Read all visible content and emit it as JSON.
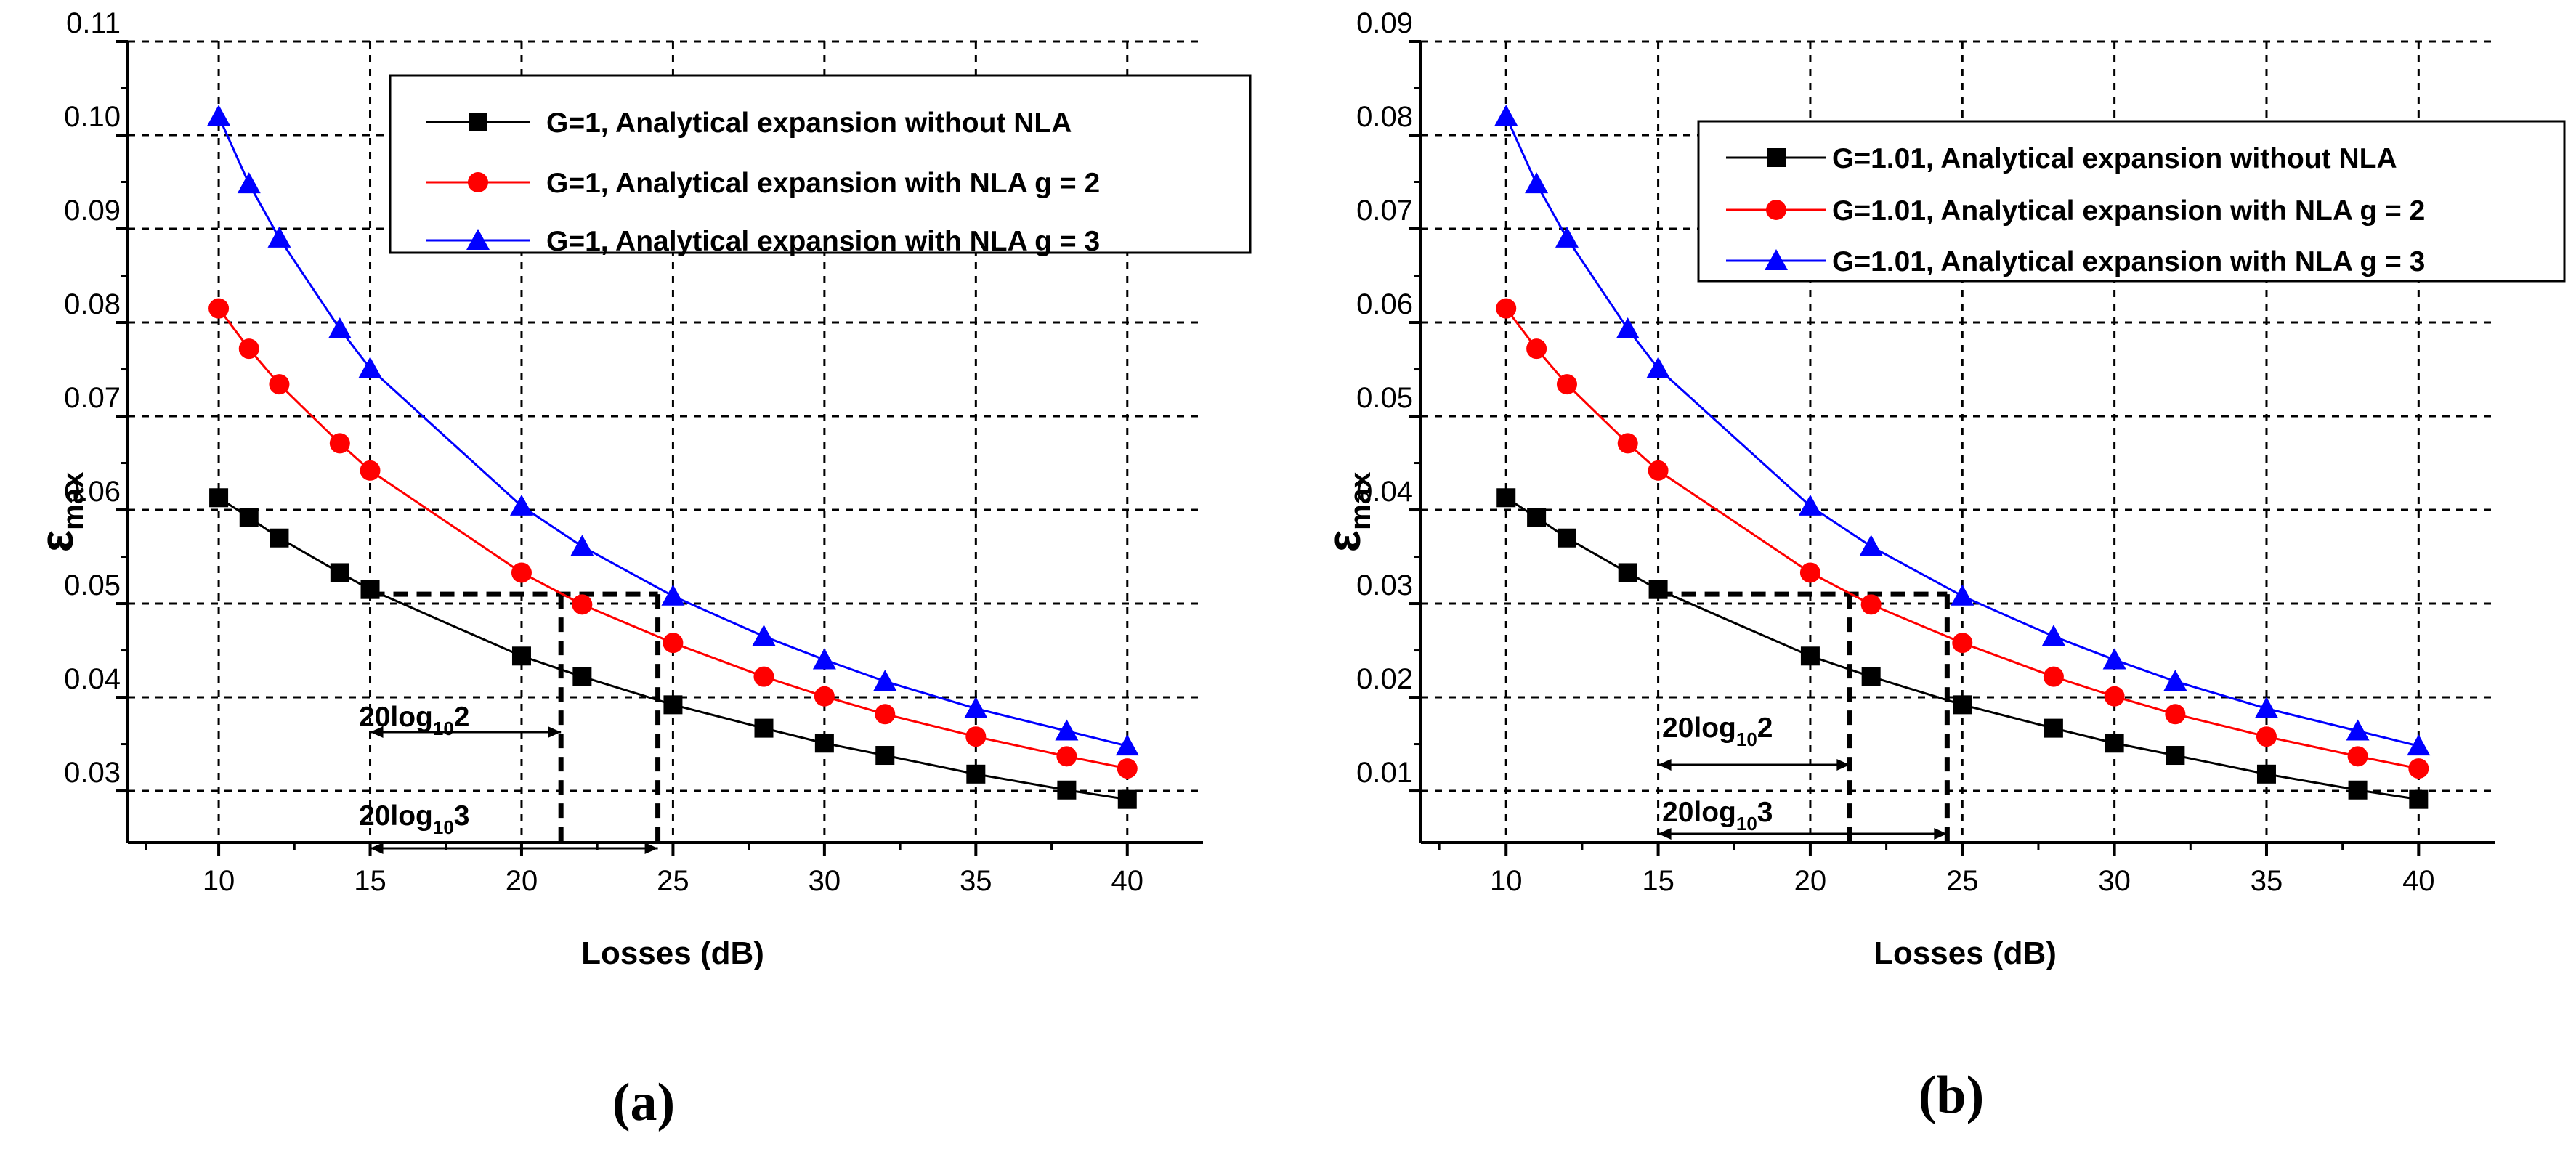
{
  "chart_data": [
    {
      "type": "line",
      "panel_label": "(a)",
      "xlabel": "Losses (dB)",
      "ylabel": {
        "main": "ε",
        "sub": "max"
      },
      "xlim": [
        7,
        42.5
      ],
      "ylim": [
        0.0245,
        0.11
      ],
      "xticks": [
        10,
        15,
        20,
        25,
        30,
        35,
        40
      ],
      "yticks": [
        0.03,
        0.04,
        0.05,
        0.06,
        0.07,
        0.08,
        0.09,
        0.1,
        0.11
      ],
      "ytick_labels": [
        "0.03",
        "0.04",
        "0.05",
        "0.06",
        "0.07",
        "0.08",
        "0.09",
        "0.10",
        "0.11"
      ],
      "grid": true,
      "legend_position": "top-right",
      "series": [
        {
          "name": "G=1, Analytical expansion without NLA",
          "color": "#000000",
          "marker": "square",
          "x": [
            10,
            11,
            12,
            14,
            15,
            20,
            22,
            25,
            28,
            30,
            32,
            35,
            38,
            40
          ],
          "y": [
            0.0613,
            0.0592,
            0.057,
            0.0533,
            0.0515,
            0.0444,
            0.0422,
            0.0392,
            0.0367,
            0.0351,
            0.0338,
            0.0318,
            0.0301,
            0.0291
          ]
        },
        {
          "name": "G=1, Analytical expansion with NLA g = 2",
          "color": "#ff0000",
          "marker": "circle",
          "x": [
            10,
            11,
            12,
            14,
            15,
            20,
            22,
            25,
            28,
            30,
            32,
            35,
            38,
            40
          ],
          "y": [
            0.0815,
            0.0772,
            0.0734,
            0.0671,
            0.0642,
            0.0533,
            0.0499,
            0.0458,
            0.0422,
            0.0401,
            0.0382,
            0.0358,
            0.0337,
            0.0324
          ]
        },
        {
          "name": "G=1, Analytical expansion with NLA g = 3",
          "color": "#0000ff",
          "marker": "triangle",
          "x": [
            10,
            11,
            12,
            14,
            15,
            20,
            22,
            25,
            28,
            30,
            32,
            35,
            38,
            40
          ],
          "y": [
            0.102,
            0.0948,
            0.089,
            0.0793,
            0.0751,
            0.0604,
            0.0561,
            0.0508,
            0.0465,
            0.044,
            0.0417,
            0.0388,
            0.0364,
            0.0348
          ]
        }
      ],
      "annotations": [
        {
          "main": "20log",
          "sub": "10",
          "tail": "2",
          "x_from": 15,
          "x_to": 21.3
        },
        {
          "main": "20log",
          "sub": "10",
          "tail": "3",
          "x_from": 15,
          "x_to": 24.5
        }
      ],
      "reference_y": 0.051,
      "drops": [
        21.3,
        24.5
      ]
    },
    {
      "type": "line",
      "panel_label": "(b)",
      "xlabel": "Losses (dB)",
      "ylabel": {
        "main": "ε",
        "sub": "max"
      },
      "xlim": [
        7.2,
        42.5
      ],
      "ylim": [
        0.0045,
        0.09
      ],
      "xticks": [
        10,
        15,
        20,
        25,
        30,
        35,
        40
      ],
      "yticks": [
        0.01,
        0.02,
        0.03,
        0.04,
        0.05,
        0.06,
        0.07,
        0.08,
        0.09
      ],
      "ytick_labels": [
        "0.01",
        "0.02",
        "0.03",
        "0.04",
        "0.05",
        "0.06",
        "0.07",
        "0.08",
        "0.09"
      ],
      "grid": true,
      "legend_position": "top-right",
      "series": [
        {
          "name": "G=1.01, Analytical expansion without NLA",
          "color": "#000000",
          "marker": "square",
          "x": [
            10,
            11,
            12,
            14,
            15,
            20,
            22,
            25,
            28,
            30,
            32,
            35,
            38,
            40
          ],
          "y": [
            0.0413,
            0.0392,
            0.037,
            0.0333,
            0.0315,
            0.0244,
            0.0222,
            0.0192,
            0.0167,
            0.0151,
            0.0138,
            0.0118,
            0.0101,
            0.0091
          ]
        },
        {
          "name": "G=1.01, Analytical expansion with NLA g = 2",
          "color": "#ff0000",
          "marker": "circle",
          "x": [
            10,
            11,
            12,
            14,
            15,
            20,
            22,
            25,
            28,
            30,
            32,
            35,
            38,
            40
          ],
          "y": [
            0.0615,
            0.0572,
            0.0534,
            0.0471,
            0.0442,
            0.0333,
            0.0299,
            0.0258,
            0.0222,
            0.0201,
            0.0182,
            0.0158,
            0.0137,
            0.0124
          ]
        },
        {
          "name": "G=1.01, Analytical expansion with NLA g = 3",
          "color": "#0000ff",
          "marker": "triangle",
          "x": [
            10,
            11,
            12,
            14,
            15,
            20,
            22,
            25,
            28,
            30,
            32,
            35,
            38,
            40
          ],
          "y": [
            0.082,
            0.0748,
            0.069,
            0.0593,
            0.0551,
            0.0404,
            0.0361,
            0.0308,
            0.0265,
            0.024,
            0.0217,
            0.0188,
            0.0164,
            0.0148
          ]
        }
      ],
      "annotations": [
        {
          "main": "20log",
          "sub": "10",
          "tail": "2",
          "x_from": 15,
          "x_to": 21.3
        },
        {
          "main": "20log",
          "sub": "10",
          "tail": "3",
          "x_from": 15,
          "x_to": 24.5
        }
      ],
      "reference_y": 0.031,
      "drops": [
        21.3,
        24.5
      ]
    }
  ]
}
